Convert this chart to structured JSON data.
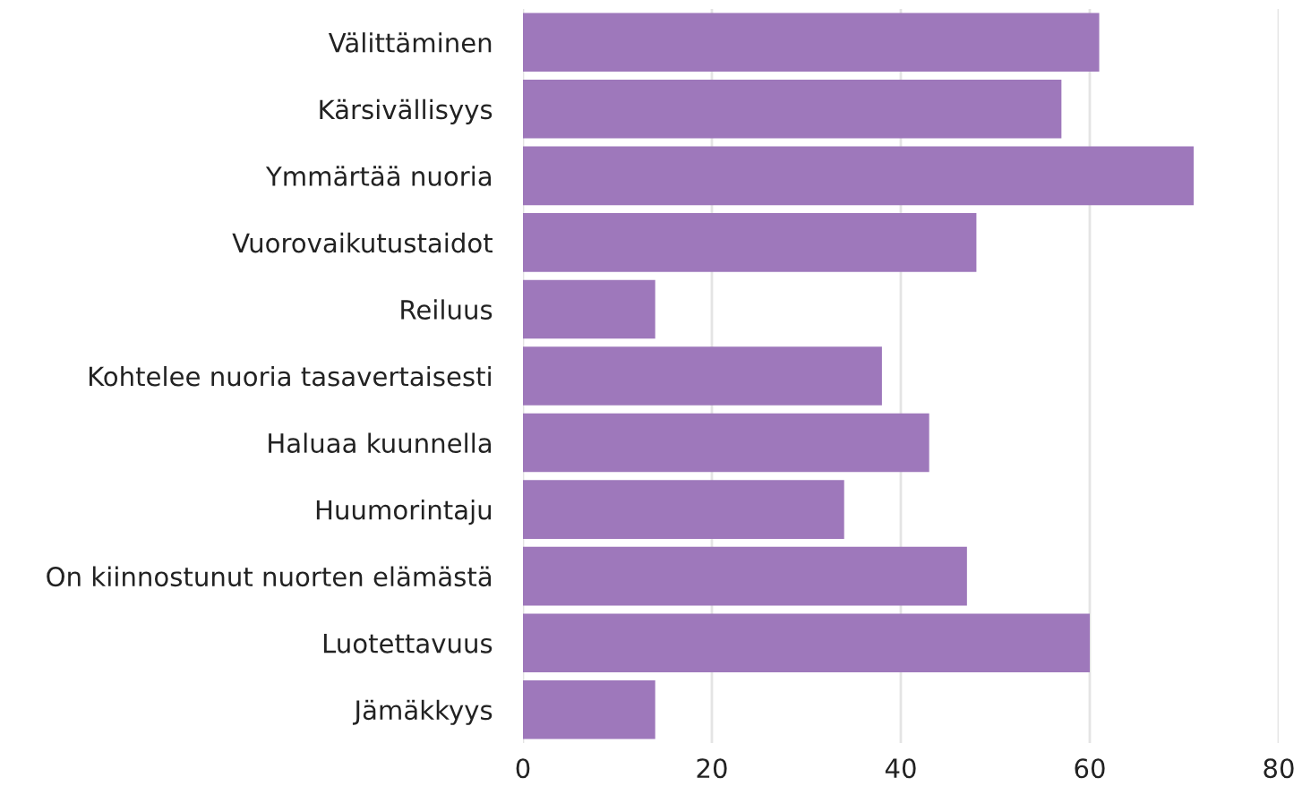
{
  "chart_data": {
    "type": "bar",
    "orientation": "horizontal",
    "categories": [
      "Välittäminen",
      "Kärsivällisyys",
      "Ymmärtää nuoria",
      "Vuorovaikutustaidot",
      "Reiluus",
      "Kohtelee nuoria tasavertaisesti",
      "Haluaa kuunnella",
      "Huumorintaju",
      "On kiinnostunut nuorten elämästä",
      "Luotettavuus",
      "Jämäkkyys"
    ],
    "values": [
      61,
      57,
      71,
      48,
      14,
      38,
      43,
      34,
      47,
      60,
      14
    ],
    "color": "#9e78bb",
    "xlim": [
      0,
      80
    ],
    "xticks": [
      0,
      20,
      40,
      60,
      80
    ],
    "grid": "x"
  }
}
